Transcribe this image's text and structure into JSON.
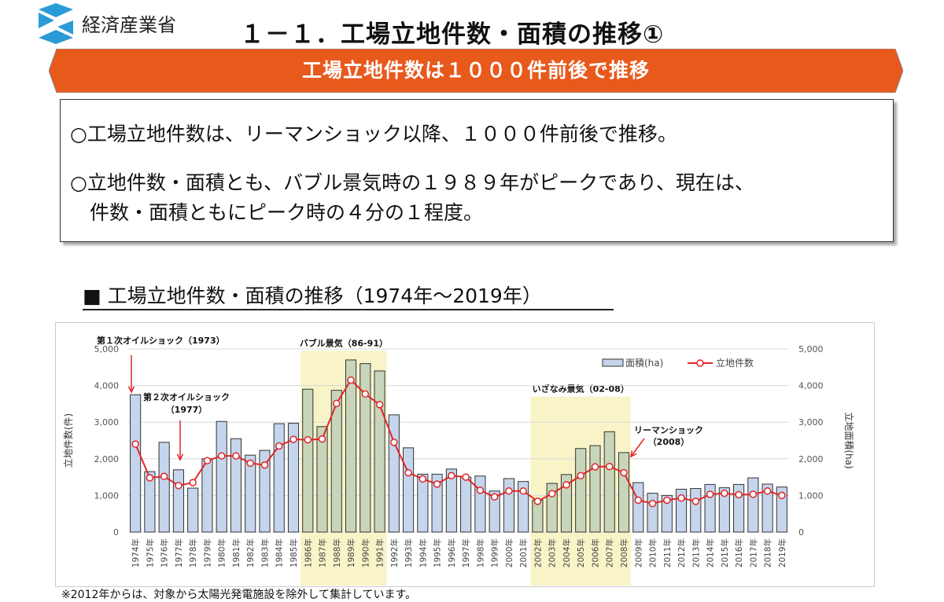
{
  "header": {
    "org_name": "経済産業省",
    "title": "１－１．工場立地件数・面積の推移①"
  },
  "banner": {
    "text": "工場立地件数は１０００件前後で推移"
  },
  "summary": {
    "lines": [
      "○工場立地件数は、リーマンショック以降、１０００件前後で推移。",
      "○立地件数・面積とも、バブル景気時の１９８９年がピークであり、現在は、",
      "　件数・面積ともにピーク時の４分の１程度。"
    ]
  },
  "section_title": "■ 工場立地件数・面積の推移（1974年～2019年）",
  "footnote": "※2012年からは、対象から太陽光発電施設を除外して集計しています。",
  "colors": {
    "banner": "#E8591C",
    "bar": "#C5D5EC",
    "bar_highlight": "#C8D5BA",
    "line": "#E0262A",
    "highlight": "#F8F4C8",
    "logo": "#2A9BD6"
  },
  "chart_data": {
    "type": "bar+line",
    "categories": [
      "1974年",
      "1975年",
      "1976年",
      "1977年",
      "1978年",
      "1979年",
      "1980年",
      "1981年",
      "1982年",
      "1983年",
      "1984年",
      "1985年",
      "1986年",
      "1987年",
      "1988年",
      "1989年",
      "1990年",
      "1991年",
      "1992年",
      "1993年",
      "1994年",
      "1995年",
      "1996年",
      "1997年",
      "1998年",
      "1999年",
      "2000年",
      "2001年",
      "2002年",
      "2003年",
      "2004年",
      "2005年",
      "2006年",
      "2007年",
      "2008年",
      "2009年",
      "2010年",
      "2011年",
      "2012年",
      "2013年",
      "2014年",
      "2015年",
      "2016年",
      "2017年",
      "2018年",
      "2019年"
    ],
    "series": [
      {
        "name": "面積(ha)",
        "type": "bar",
        "axis": "right",
        "values": [
          3750,
          1650,
          2450,
          1700,
          1200,
          2000,
          3020,
          2550,
          2100,
          2230,
          2960,
          2970,
          3900,
          2880,
          3870,
          4700,
          4600,
          4400,
          3200,
          2300,
          1580,
          1580,
          1720,
          1500,
          1530,
          1120,
          1460,
          1380,
          870,
          1330,
          1570,
          2280,
          2360,
          2740,
          2170,
          1350,
          1060,
          1000,
          1170,
          1190,
          1300,
          1210,
          1300,
          1480,
          1310,
          1230
        ]
      },
      {
        "name": "立地件数",
        "type": "line",
        "axis": "left",
        "values": [
          2400,
          1480,
          1520,
          1270,
          1350,
          1950,
          2080,
          2080,
          1880,
          1830,
          2350,
          2530,
          2520,
          2540,
          3510,
          4150,
          3770,
          3480,
          2450,
          1620,
          1450,
          1310,
          1540,
          1500,
          1140,
          960,
          1120,
          1120,
          840,
          1050,
          1290,
          1540,
          1780,
          1790,
          1620,
          870,
          780,
          870,
          930,
          840,
          1030,
          1060,
          1020,
          1030,
          1120,
          1000
        ]
      }
    ],
    "ylim": [
      0,
      5000
    ],
    "yticks": [
      "0",
      "1,000",
      "2,000",
      "3,000",
      "4,000",
      "5,000"
    ],
    "ylabel_left": "立地件数(件)",
    "ylabel_right": "立地面積(ha)",
    "legend_position": "top-right",
    "highlights": [
      {
        "label": "バブル景気（86-91）",
        "from": "1986年",
        "to": "1991年"
      },
      {
        "label": "いざなみ景気（02-08）",
        "from": "2002年",
        "to": "2008年"
      }
    ],
    "annotations": [
      {
        "text": "第１次オイルショック（1973）",
        "year": "1974年"
      },
      {
        "text": "第２次オイルショック",
        "sub": "（1977）",
        "year": "1977年"
      },
      {
        "text": "リーマンショック",
        "sub": "（2008）",
        "year": "2008年"
      }
    ]
  }
}
